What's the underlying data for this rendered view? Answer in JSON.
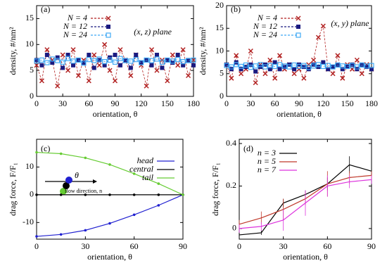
{
  "chart_data": [
    {
      "type": "scatter",
      "panel_label": "(a)",
      "annotation": "(x, z) plane",
      "x_label": "orientation, θ",
      "y_label": "density, #/nm²",
      "xlim": [
        0,
        180
      ],
      "xticks": [
        0,
        30,
        60,
        90,
        120,
        150,
        180
      ],
      "ylim": [
        0,
        17.5
      ],
      "yticks": [
        0,
        5,
        10,
        15
      ],
      "legend": "upper left",
      "x": [
        0,
        6,
        12,
        18,
        24,
        30,
        36,
        42,
        48,
        54,
        60,
        66,
        72,
        78,
        84,
        90,
        96,
        102,
        108,
        114,
        120,
        126,
        132,
        138,
        144,
        150,
        156,
        162,
        168,
        174,
        180
      ],
      "series": [
        {
          "name": "N = 4",
          "color": "#b22222",
          "marker": "x",
          "values": [
            6,
            3,
            9,
            7,
            2,
            8,
            5,
            9,
            4,
            7,
            3,
            8,
            6,
            10,
            5,
            3,
            9,
            7,
            4,
            8,
            6,
            2,
            9,
            5,
            7,
            3,
            8,
            6,
            9,
            4,
            7
          ]
        },
        {
          "name": "N = 12",
          "color": "#1a1a80",
          "marker": "square-filled",
          "values": [
            7,
            6,
            8,
            6.5,
            7.5,
            5.5,
            8,
            6,
            7,
            6.5,
            8,
            5.5,
            7,
            6,
            7.5,
            8,
            6,
            7,
            5.5,
            8,
            6.5,
            7,
            6,
            8,
            5.5,
            7,
            6.5,
            8,
            6,
            7,
            6
          ]
        },
        {
          "name": "N = 24",
          "color": "#3fa9f5",
          "marker": "square-open",
          "values": [
            6.8,
            7,
            6.5,
            7.2,
            6.9,
            6.6,
            7.3,
            6.8,
            7,
            6.4,
            7.1,
            6.9,
            7.2,
            6.7,
            7,
            6.6,
            7.3,
            6.9,
            6.8,
            7.1,
            6.5,
            7,
            6.9,
            7.2,
            6.6,
            7,
            6.8,
            7.1,
            6.7,
            6.9,
            7
          ]
        }
      ]
    },
    {
      "type": "scatter",
      "panel_label": "(b)",
      "annotation": "(x, y) plane",
      "x_label": "orientation, θ",
      "y_label": "density, #/nm²",
      "xlim": [
        0,
        180
      ],
      "xticks": [
        0,
        30,
        60,
        90,
        120,
        150,
        180
      ],
      "ylim": [
        0,
        20
      ],
      "yticks": [
        0,
        5,
        10,
        15,
        20
      ],
      "legend": "upper left",
      "x": [
        0,
        6,
        12,
        18,
        24,
        30,
        36,
        42,
        48,
        54,
        60,
        66,
        72,
        78,
        84,
        90,
        96,
        102,
        108,
        114,
        120,
        126,
        132,
        138,
        144,
        150,
        156,
        162,
        168,
        174,
        180
      ],
      "series": [
        {
          "name": "N = 4",
          "color": "#b22222",
          "marker": "x",
          "values": [
            7,
            4,
            9,
            5,
            6,
            10,
            3,
            7,
            5,
            8,
            4,
            9,
            6,
            7,
            5,
            6,
            4,
            7,
            8,
            13,
            15.5,
            6,
            5,
            9,
            4,
            7,
            6,
            8,
            5,
            7,
            6
          ]
        },
        {
          "name": "N = 12",
          "color": "#1a1a80",
          "marker": "square-filled",
          "values": [
            7,
            6,
            7.5,
            6,
            6.5,
            7,
            5.5,
            6.5,
            7,
            6,
            7.5,
            6,
            6.5,
            7,
            6,
            7,
            6.5,
            6,
            7,
            6.5,
            7.5,
            6,
            6.5,
            7,
            6,
            6.5,
            7,
            6,
            7,
            6.5,
            6
          ]
        },
        {
          "name": "N = 24",
          "color": "#3fa9f5",
          "marker": "square-open",
          "values": [
            6.8,
            6.5,
            7,
            6.6,
            6.9,
            6.4,
            6.7,
            7,
            6.5,
            6.8,
            6.6,
            7,
            6.7,
            6.5,
            6.9,
            6.6,
            6.8,
            6.4,
            6.7,
            7,
            6.6,
            6.8,
            6.5,
            6.9,
            6.7,
            6.6,
            6.8,
            6.5,
            6.9,
            6.7,
            6.8
          ]
        }
      ]
    },
    {
      "type": "line",
      "panel_label": "(c)",
      "inset_labels": [
        "θ",
        "flow direction, n"
      ],
      "x_label": "orientation, θ",
      "y_label": "drag force, F/F₁",
      "xlim": [
        0,
        90
      ],
      "xticks": [
        0,
        30,
        60,
        90
      ],
      "ylim": [
        -16,
        20
      ],
      "yticks": [
        -10,
        0,
        10
      ],
      "legend": "upper right",
      "x": [
        0,
        15,
        30,
        45,
        60,
        75,
        90
      ],
      "series": [
        {
          "name": "head",
          "color": "#2020d0",
          "marker": "dot",
          "values": [
            -15,
            -14.3,
            -12.8,
            -10.3,
            -7.2,
            -3.8,
            0
          ]
        },
        {
          "name": "central",
          "color": "#000000",
          "marker": "dot",
          "values": [
            0,
            0,
            0,
            0,
            0,
            0,
            0
          ]
        },
        {
          "name": "tail",
          "color": "#66cc33",
          "marker": "dot",
          "values": [
            15.3,
            14.8,
            13.3,
            10.9,
            7.6,
            4,
            0
          ]
        }
      ]
    },
    {
      "type": "errorbar",
      "panel_label": "(d)",
      "x_label": "orientation, θ",
      "y_label": "drag force, F/F₁",
      "xlim": [
        0,
        90
      ],
      "xticks": [
        0,
        30,
        60,
        90
      ],
      "ylim": [
        -0.05,
        0.42
      ],
      "yticks": [
        0,
        0.2,
        0.4
      ],
      "legend": "upper left",
      "x": [
        0,
        15,
        30,
        45,
        60,
        75,
        90
      ],
      "series": [
        {
          "name": "n = 3",
          "color": "#000000",
          "values": [
            -0.03,
            -0.02,
            0.12,
            0.16,
            0.21,
            0.3,
            0.27
          ],
          "errors": [
            0.01,
            0.01,
            0.02,
            0.02,
            0.03,
            0.04,
            0.03
          ]
        },
        {
          "name": "n = 5",
          "color": "#c0392b",
          "values": [
            0.02,
            0.05,
            0.09,
            0.14,
            0.21,
            0.24,
            0.25
          ],
          "errors": [
            0.02,
            0.03,
            0.05,
            0.03,
            0.06,
            0.03,
            0.02
          ]
        },
        {
          "name": "n = 7",
          "color": "#dd33dd",
          "values": [
            0,
            0.01,
            0.04,
            0.12,
            0.2,
            0.22,
            0.23
          ],
          "errors": [
            0.02,
            0.02,
            0.05,
            0.06,
            0.05,
            0.03,
            0.02
          ]
        }
      ]
    }
  ]
}
